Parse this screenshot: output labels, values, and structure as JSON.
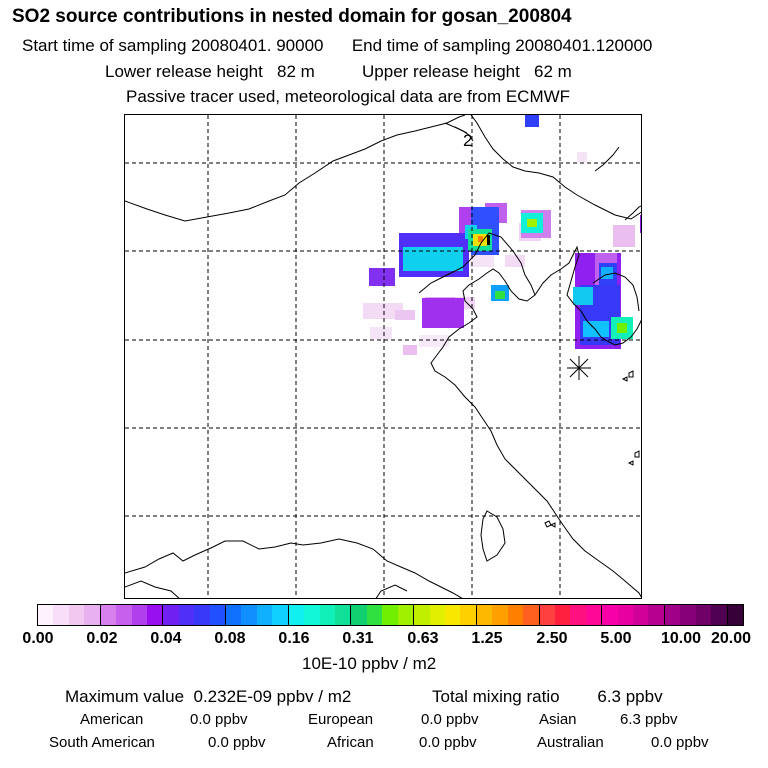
{
  "title": "SO2 source contributions in nested domain for gosan_200804",
  "subtitle_line1": "Start time of sampling 20080401. 90000      End time of sampling 20080401.120000",
  "subtitle_line2": "Lower release height   82 m          Upper release height   62 m",
  "subtitle_line3": "Passive tracer used, meteorological data are from ECMWF",
  "map": {
    "contour_label": "2",
    "receptor_marker": "star-icon"
  },
  "colorbar": {
    "tick_labels": [
      "0.00",
      "0.02",
      "0.04",
      "0.08",
      "0.16",
      "0.31",
      "0.63",
      "1.25",
      "2.50",
      "5.00",
      "10.00",
      "20.00"
    ],
    "unit_label": "10E-10 ppbv / m2",
    "colors": [
      "#fdf2fd",
      "#f8def8",
      "#f0c8f0",
      "#e8b0ee",
      "#d880ee",
      "#c860ee",
      "#b040ee",
      "#9810f0",
      "#7020f0",
      "#5030f8",
      "#3838f8",
      "#2050ff",
      "#1070ff",
      "#1090ff",
      "#10b0ff",
      "#10d0ff",
      "#10f0f0",
      "#10f8d8",
      "#10f0b8",
      "#10e098",
      "#10d070",
      "#30e040",
      "#70f000",
      "#a0f000",
      "#c0f000",
      "#e0f000",
      "#f8e800",
      "#ffd000",
      "#ffb800",
      "#ffa000",
      "#ff8000",
      "#ff6020",
      "#ff4040",
      "#ff2040",
      "#ff1080",
      "#ff0898",
      "#f800a8",
      "#e800a0",
      "#d00098",
      "#b80090",
      "#a00088",
      "#880078",
      "#700068",
      "#500050",
      "#380038"
    ]
  },
  "summary": {
    "max_label": "Maximum value",
    "max_value": "0.232E-09 ppbv / m2",
    "total_label": "Total mixing ratio",
    "total_value": "6.3 ppbv",
    "regions": [
      {
        "name": "American",
        "value": "0.0 ppbv"
      },
      {
        "name": "European",
        "value": "0.0 ppbv"
      },
      {
        "name": "Asian",
        "value": "6.3 ppbv"
      },
      {
        "name": "South American",
        "value": "0.0 ppbv"
      },
      {
        "name": "African",
        "value": "0.0 ppbv"
      },
      {
        "name": "Australian",
        "value": "0.0 ppbv"
      }
    ]
  }
}
